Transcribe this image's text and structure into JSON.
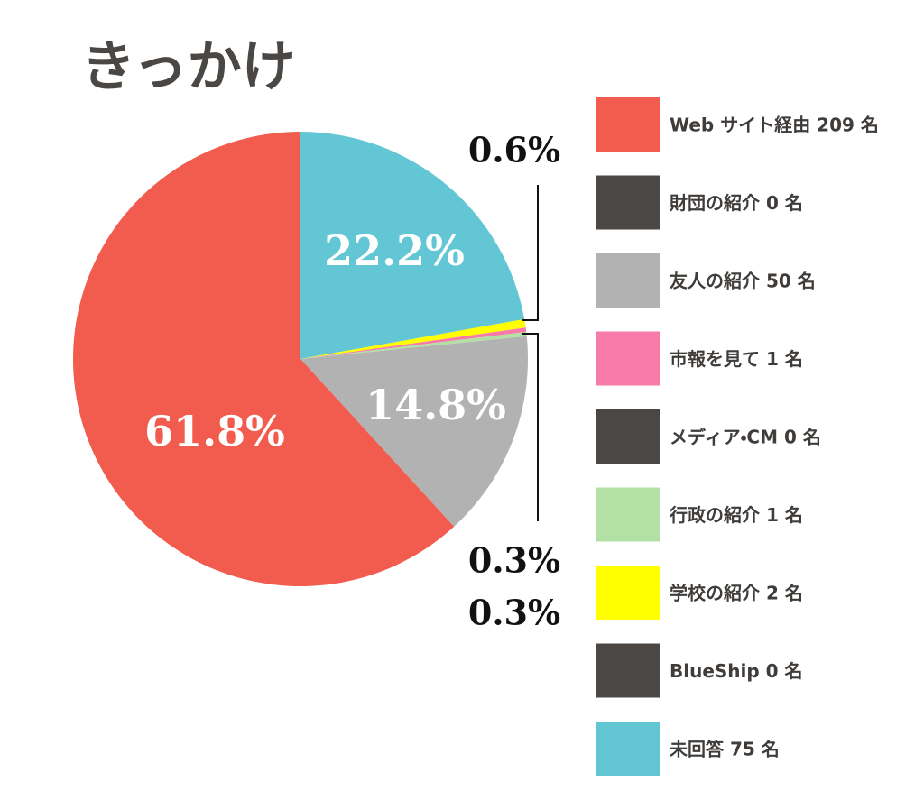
{
  "chart_data": {
    "type": "pie",
    "title": "きっかけ",
    "categories": [
      "Web サイト経由 209 名",
      "財団の紹介 0 名",
      "友人の紹介 50 名",
      "市報を見て 1 名",
      "メディア・CM 0 名",
      "行政の紹介 1 名",
      "学校の紹介 2 名",
      "BlueShip 0 名",
      "未回答 75 名"
    ],
    "values": [
      61.8,
      0,
      14.8,
      0.3,
      0,
      0.3,
      0.6,
      0,
      22.2
    ],
    "value_labels": [
      "61.8%",
      null,
      "14.8%",
      "0.3%",
      null,
      "0.3%",
      "0.6%",
      null,
      "22.2%"
    ],
    "colors": [
      "#f25c4f",
      "#4a4744",
      "#b2b2b2",
      "#f77aa8",
      "#4a4744",
      "#b3e0a5",
      "#ffff00",
      "#4a4744",
      "#63c6d4"
    ],
    "legend": "right"
  }
}
